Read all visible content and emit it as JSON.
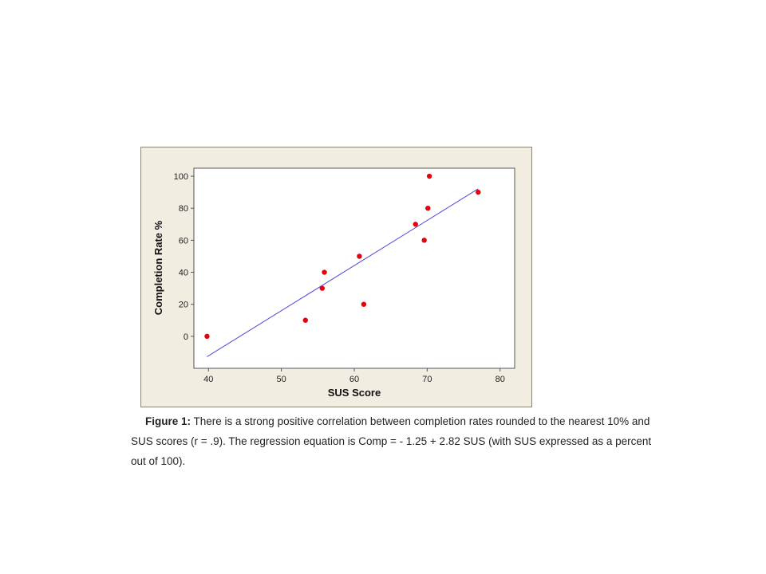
{
  "chart_data": {
    "type": "scatter",
    "xlabel": "SUS Score",
    "ylabel": "Completion Rate %",
    "xlim": [
      38,
      82
    ],
    "ylim": [
      -20,
      105
    ],
    "xticks": [
      40,
      50,
      60,
      70,
      80
    ],
    "yticks": [
      0,
      20,
      40,
      60,
      80,
      100
    ],
    "grid": false,
    "points": [
      {
        "x": 39.8,
        "y": 0
      },
      {
        "x": 53.3,
        "y": 10
      },
      {
        "x": 55.6,
        "y": 30
      },
      {
        "x": 55.9,
        "y": 40
      },
      {
        "x": 60.7,
        "y": 50
      },
      {
        "x": 61.3,
        "y": 20
      },
      {
        "x": 68.4,
        "y": 70
      },
      {
        "x": 69.6,
        "y": 60
      },
      {
        "x": 70.1,
        "y": 80
      },
      {
        "x": 70.3,
        "y": 100
      },
      {
        "x": 77.0,
        "y": 90
      }
    ],
    "regression": {
      "intercept": -125,
      "slope": 2.82,
      "x_range": [
        39.8,
        77.0
      ]
    },
    "colors": {
      "points": "#e8000b",
      "line": "#4a4ad8",
      "frame_bg": "#f2ede1",
      "plot_bg": "#ffffff"
    }
  },
  "caption": {
    "lead": "Figure 1:",
    "line1": " There is a strong positive correlation between completion rates rounded to the nearest 10% and",
    "line2": "SUS scores (r = .9). The regression equation is Comp = - 1.25 + 2.82 SUS (with SUS expressed as a percent",
    "line3": "out of 100)."
  }
}
